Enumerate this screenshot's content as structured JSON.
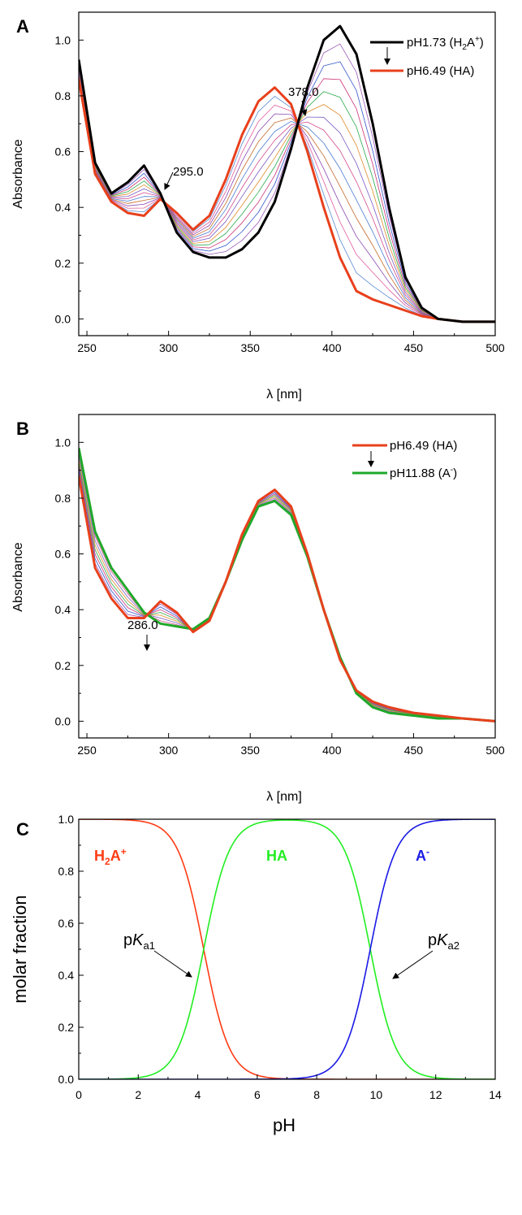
{
  "chart_data": [
    {
      "panel": "A",
      "type": "line",
      "xlabel": "λ [nm]",
      "ylabel": "Absorbance",
      "xlim": [
        245,
        500
      ],
      "ylim": [
        -0.06,
        1.1
      ],
      "xticks": [
        250,
        300,
        350,
        400,
        450,
        500
      ],
      "yticks": [
        0.0,
        0.2,
        0.4,
        0.6,
        0.8,
        1.0
      ],
      "legend": [
        "pH1.73 (H2A+)",
        "pH6.49 (HA)"
      ],
      "legend_position": "top-right",
      "annotations": [
        "295.0",
        "378.0"
      ],
      "isosbestic_points": [
        295.0,
        378.0
      ],
      "series": [
        {
          "name": "pH1.73 (H2A+)",
          "color": "#000000",
          "x": [
            245,
            255,
            265,
            275,
            285,
            295,
            305,
            315,
            325,
            335,
            345,
            355,
            365,
            375,
            385,
            395,
            405,
            415,
            425,
            435,
            445,
            455,
            465,
            480,
            500
          ],
          "y": [
            0.93,
            0.56,
            0.45,
            0.49,
            0.55,
            0.45,
            0.31,
            0.24,
            0.22,
            0.22,
            0.25,
            0.31,
            0.42,
            0.61,
            0.83,
            1.0,
            1.05,
            0.95,
            0.7,
            0.4,
            0.15,
            0.04,
            0.0,
            -0.01,
            -0.01
          ]
        },
        {
          "name": "pH6.49 (HA)",
          "color": "#e8401c",
          "x": [
            245,
            255,
            265,
            275,
            285,
            295,
            305,
            315,
            325,
            335,
            345,
            355,
            365,
            375,
            385,
            395,
            405,
            415,
            425,
            435,
            445,
            455,
            465,
            480,
            500
          ],
          "y": [
            0.86,
            0.52,
            0.42,
            0.38,
            0.37,
            0.43,
            0.38,
            0.32,
            0.37,
            0.5,
            0.66,
            0.78,
            0.83,
            0.77,
            0.6,
            0.4,
            0.22,
            0.1,
            0.07,
            0.05,
            0.03,
            0.01,
            0.0,
            -0.01,
            -0.01
          ]
        }
      ]
    },
    {
      "panel": "B",
      "type": "line",
      "xlabel": "λ [nm]",
      "ylabel": "Absorbance",
      "xlim": [
        245,
        500
      ],
      "ylim": [
        -0.06,
        1.1
      ],
      "xticks": [
        250,
        300,
        350,
        400,
        450,
        500
      ],
      "yticks": [
        0.0,
        0.2,
        0.4,
        0.6,
        0.8,
        1.0
      ],
      "legend": [
        "pH6.49 (HA)",
        "pH11.88 (A-)"
      ],
      "legend_position": "top-right",
      "annotations": [
        "286.0"
      ],
      "isosbestic_points": [
        286.0
      ],
      "series": [
        {
          "name": "pH6.49 (HA)",
          "color": "#e8401c",
          "x": [
            245,
            255,
            265,
            275,
            285,
            295,
            305,
            315,
            325,
            335,
            345,
            355,
            365,
            375,
            385,
            395,
            405,
            415,
            425,
            435,
            450,
            465,
            480,
            500
          ],
          "y": [
            0.88,
            0.55,
            0.44,
            0.37,
            0.37,
            0.43,
            0.39,
            0.32,
            0.36,
            0.5,
            0.67,
            0.79,
            0.83,
            0.77,
            0.6,
            0.4,
            0.22,
            0.11,
            0.07,
            0.05,
            0.03,
            0.02,
            0.01,
            0.0
          ]
        },
        {
          "name": "pH11.88 (A-)",
          "color": "#1fa82a",
          "x": [
            245,
            255,
            265,
            275,
            285,
            295,
            305,
            315,
            325,
            335,
            345,
            355,
            365,
            375,
            385,
            395,
            405,
            415,
            425,
            435,
            450,
            465,
            480,
            500
          ],
          "y": [
            0.98,
            0.68,
            0.55,
            0.47,
            0.39,
            0.35,
            0.34,
            0.33,
            0.37,
            0.5,
            0.65,
            0.77,
            0.79,
            0.74,
            0.59,
            0.4,
            0.23,
            0.1,
            0.05,
            0.03,
            0.02,
            0.01,
            0.01,
            0.0
          ]
        }
      ]
    },
    {
      "panel": "C",
      "type": "line",
      "xlabel": "pH",
      "ylabel": "molar fraction",
      "xlim": [
        0,
        14
      ],
      "ylim": [
        0,
        1
      ],
      "xticks": [
        0,
        2,
        4,
        6,
        8,
        10,
        12,
        14
      ],
      "yticks": [
        0.0,
        0.2,
        0.4,
        0.6,
        0.8,
        1.0
      ],
      "pKa1": 4.2,
      "pKa2": 9.8,
      "annotations": [
        "pKa1",
        "pKa2"
      ],
      "series": [
        {
          "name": "H2A+",
          "color": "#ff3b14"
        },
        {
          "name": "HA",
          "color": "#22ee22"
        },
        {
          "name": "A-",
          "color": "#1a1ae6"
        }
      ]
    }
  ],
  "labels": {
    "panel_a": "A",
    "panel_b": "B",
    "panel_c": "C",
    "x_label_ab": "λ [nm]",
    "y_label_ab": "Absorbance",
    "x_label_c": "pH",
    "y_label_c": "molar fraction",
    "legend_a1_base": "pH1.73 (H",
    "legend_a1_sub": "2",
    "legend_a1_mid": "A",
    "legend_a1_sup": "+",
    "legend_a1_end": ")",
    "legend_a2": "pH6.49 (HA)",
    "legend_b1": "pH6.49 (HA)",
    "legend_b2_base": "pH11.88 (A",
    "legend_b2_sup": "-",
    "legend_b2_end": ")",
    "ann_295": "295.0",
    "ann_378": "378.0",
    "ann_286": "286.0",
    "species_h2a_h": "H",
    "species_h2a_sub": "2",
    "species_h2a_a": "A",
    "species_h2a_sup": "+",
    "species_ha": "HA",
    "species_a": "A",
    "species_a_sup": "-",
    "pka1_p": "p",
    "pka1_k": "K",
    "pka1_sub": "a1",
    "pka2_p": "p",
    "pka2_k": "K",
    "pka2_sub": "a2"
  }
}
